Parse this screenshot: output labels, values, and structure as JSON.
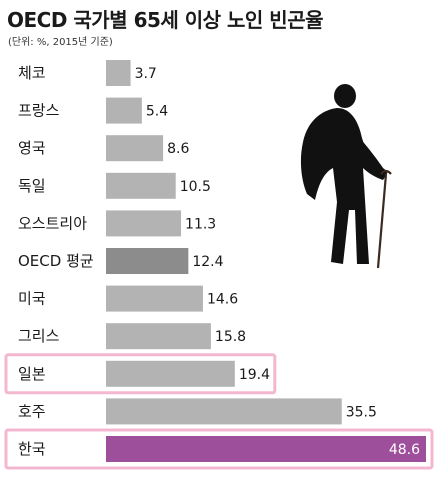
{
  "header": {
    "title": "OECD 국가별 65세 이상 노인 빈곤율",
    "subtitle": "(단위: %, 2015년 기준)"
  },
  "colors": {
    "bar_default": "#b3b3b3",
    "bar_average": "#8c8c8c",
    "bar_korea": "#9d4f9b",
    "highlight_border": "#f3b8d0"
  },
  "illustration": {
    "icon": "elderly-person-with-cane-icon"
  },
  "chart_data": {
    "type": "bar",
    "orientation": "horizontal",
    "title": "OECD 국가별 65세 이상 노인 빈곤율",
    "subtitle": "(단위: %, 2015년 기준)",
    "categories": [
      "체코",
      "프랑스",
      "영국",
      "독일",
      "오스트리아",
      "OECD 평균",
      "미국",
      "그리스",
      "일본",
      "호주",
      "한국"
    ],
    "values": [
      3.7,
      5.4,
      8.6,
      10.5,
      11.3,
      12.4,
      14.6,
      15.8,
      19.4,
      35.5,
      48.6
    ],
    "value_labels": [
      "3.7",
      "5.4",
      "8.6",
      "10.5",
      "11.3",
      "12.4",
      "14.6",
      "15.8",
      "19.4",
      "35.5",
      "48.6"
    ],
    "highlighted": [
      "일본",
      "한국"
    ],
    "average_category": "OECD 평균",
    "xlim": [
      0,
      51
    ],
    "grid": false,
    "legend": "none"
  }
}
